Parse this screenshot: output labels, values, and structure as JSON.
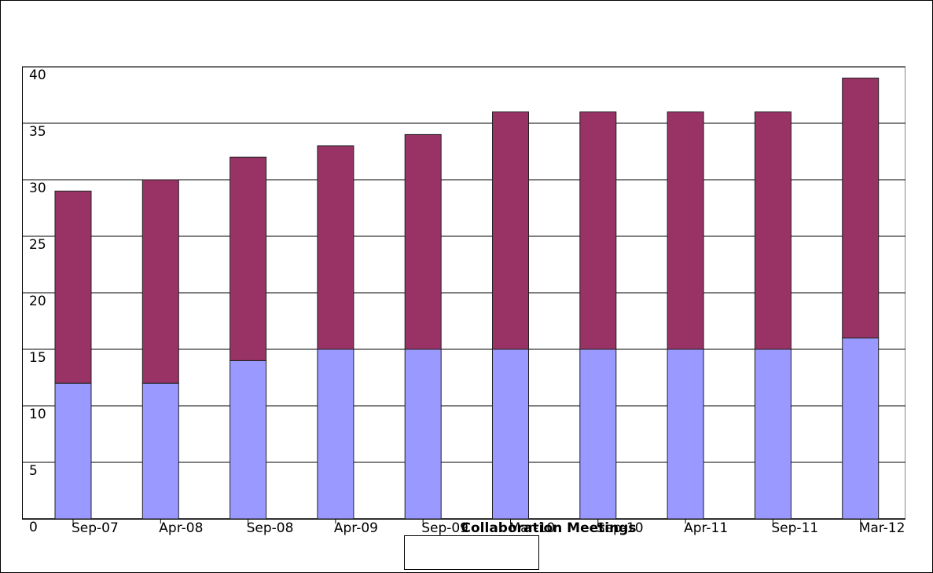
{
  "chart_data": {
    "type": "stacked_bar",
    "x_label": "Collaboration Meetings",
    "categories": [
      "Sep-07",
      "Apr-08",
      "Sep-08",
      "Apr-09",
      "Sep-09",
      "Mar-10",
      "Sep-10",
      "Apr-11",
      "Sep-11",
      "Mar-12"
    ],
    "series": [
      {
        "color": "#9999ff",
        "values": [
          12,
          12,
          14,
          15,
          15,
          15,
          15,
          15,
          15,
          16
        ]
      },
      {
        "color": "#993366",
        "values": [
          17,
          18,
          18,
          18,
          19,
          21,
          21,
          21,
          21,
          23
        ]
      }
    ],
    "ylim": [
      0,
      40
    ],
    "yticks": [
      0,
      5,
      10,
      15,
      20,
      25,
      30,
      35,
      40
    ],
    "grid": true
  }
}
